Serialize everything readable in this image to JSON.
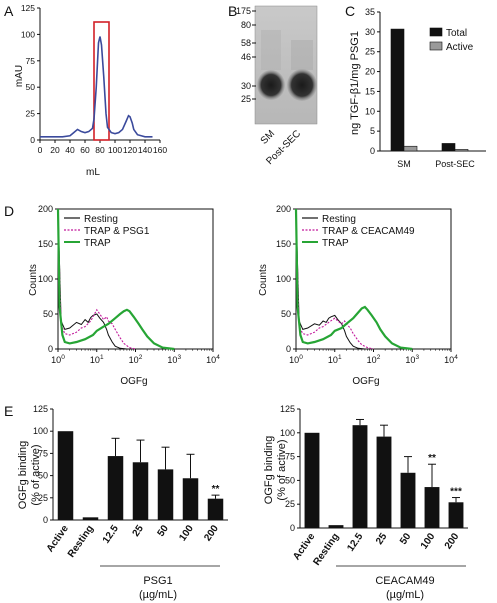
{
  "colors": {
    "blue": "#3b4a9c",
    "red": "#d22027",
    "black": "#111111",
    "grey": "#9a9a9a",
    "magenta": "#c2189b",
    "green": "#27a535"
  },
  "chart_data": [
    {
      "panel": "A",
      "type": "line",
      "xlabel": "mL",
      "ylabel": "mAU",
      "xlim": [
        0,
        160
      ],
      "ylim": [
        0,
        125
      ],
      "xticks": [
        0,
        20,
        40,
        60,
        80,
        100,
        120,
        140,
        160
      ],
      "yticks": [
        0,
        25,
        50,
        75,
        100,
        125
      ],
      "x": [
        0,
        10,
        20,
        30,
        40,
        45,
        50,
        55,
        60,
        65,
        70,
        72,
        75,
        78,
        80,
        82,
        85,
        88,
        90,
        95,
        100,
        105,
        110,
        115,
        118,
        120,
        123,
        125,
        130,
        135,
        140,
        145,
        150
      ],
      "y": [
        3,
        3,
        3,
        3,
        4,
        7,
        10,
        8,
        7,
        8,
        11,
        20,
        50,
        92,
        98,
        90,
        60,
        25,
        12,
        7,
        6,
        7,
        10,
        18,
        23,
        22,
        16,
        10,
        5,
        4,
        3,
        3,
        3
      ],
      "highlight_x": [
        72,
        92
      ]
    },
    {
      "panel": "B",
      "type": "gel",
      "marker_labels": [
        "175",
        "80",
        "58",
        "46",
        "30",
        "25"
      ],
      "marker_values": [
        175,
        80,
        58,
        46,
        30,
        25
      ],
      "lanes": [
        "SM",
        "Post-SEC"
      ]
    },
    {
      "panel": "C",
      "type": "bar",
      "ylabel": "ng TGF-β1/mg PSG1",
      "ylim": [
        0,
        35
      ],
      "yticks": [
        0,
        5,
        10,
        15,
        20,
        25,
        30,
        35
      ],
      "categories": [
        "SM",
        "Post-SEC"
      ],
      "series": [
        {
          "name": "Total",
          "values": [
            30.7,
            1.9
          ]
        },
        {
          "name": "Active",
          "values": [
            1.2,
            0.4
          ]
        }
      ],
      "legend": "top-right"
    },
    {
      "panel": "D-left",
      "type": "line",
      "xlabel": "OGFg",
      "ylabel": "Counts",
      "xscale": "log",
      "xlim": [
        1,
        10000
      ],
      "ylim": [
        0,
        200
      ],
      "yticks": [
        0,
        50,
        100,
        150,
        200
      ],
      "xtick_base": "10",
      "xtick_exps": [
        "0",
        "1",
        "2",
        "3",
        "4"
      ],
      "series": [
        {
          "name": "Resting",
          "x": [
            1,
            1.2,
            1.5,
            2,
            3,
            4,
            5,
            6,
            7,
            8,
            10,
            12,
            15,
            18,
            20,
            25,
            30,
            40,
            60
          ],
          "y": [
            200,
            40,
            28,
            30,
            38,
            35,
            42,
            38,
            45,
            48,
            50,
            44,
            38,
            28,
            20,
            10,
            4,
            1,
            0
          ]
        },
        {
          "name": "TRAP & PSG1",
          "x": [
            1,
            1.2,
            1.5,
            2,
            3,
            4,
            5,
            7,
            10,
            12,
            15,
            18,
            20,
            25,
            30,
            40,
            50,
            70,
            100
          ],
          "y": [
            195,
            35,
            22,
            20,
            24,
            30,
            32,
            40,
            56,
            50,
            42,
            46,
            40,
            36,
            28,
            16,
            8,
            2,
            0
          ]
        },
        {
          "name": "TRAP",
          "x": [
            1,
            1.1,
            1.3,
            1.5,
            2,
            3,
            5,
            8,
            10,
            15,
            20,
            30,
            40,
            50,
            60,
            70,
            90,
            120,
            150,
            200,
            300,
            500,
            1000
          ],
          "y": [
            200,
            60,
            20,
            10,
            8,
            10,
            14,
            20,
            26,
            32,
            36,
            44,
            50,
            54,
            56,
            54,
            46,
            36,
            28,
            18,
            8,
            2,
            0
          ]
        }
      ]
    },
    {
      "panel": "D-right",
      "type": "line",
      "xlabel": "OGFg",
      "ylabel": "Counts",
      "xscale": "log",
      "xlim": [
        1,
        10000
      ],
      "ylim": [
        0,
        200
      ],
      "yticks": [
        0,
        50,
        100,
        150,
        200
      ],
      "xtick_base": "10",
      "xtick_exps": [
        "0",
        "1",
        "2",
        "3",
        "4"
      ],
      "series": [
        {
          "name": "Resting",
          "x": [
            1,
            1.2,
            1.5,
            2,
            3,
            4,
            5,
            6,
            7,
            8,
            10,
            12,
            15,
            18,
            20,
            25,
            30,
            40,
            60
          ],
          "y": [
            200,
            40,
            28,
            30,
            36,
            34,
            40,
            38,
            44,
            46,
            48,
            42,
            36,
            26,
            18,
            9,
            4,
            1,
            0
          ]
        },
        {
          "name": "TRAP & CEACAM49",
          "x": [
            1,
            1.2,
            1.5,
            2,
            3,
            4,
            5,
            7,
            10,
            12,
            15,
            18,
            20,
            25,
            30,
            40,
            50,
            70,
            100
          ],
          "y": [
            195,
            32,
            22,
            20,
            24,
            30,
            32,
            38,
            44,
            40,
            36,
            40,
            36,
            30,
            22,
            12,
            6,
            2,
            0
          ]
        },
        {
          "name": "TRAP",
          "x": [
            1,
            1.1,
            1.3,
            1.5,
            2,
            3,
            5,
            8,
            10,
            15,
            20,
            30,
            40,
            50,
            60,
            70,
            90,
            120,
            150,
            200,
            300,
            500,
            1000
          ],
          "y": [
            200,
            60,
            20,
            10,
            8,
            10,
            14,
            20,
            26,
            30,
            36,
            44,
            52,
            58,
            60,
            56,
            48,
            38,
            28,
            18,
            8,
            2,
            0
          ]
        }
      ]
    },
    {
      "panel": "E-left",
      "type": "bar",
      "ylabel": "OGFg binding (% of active)",
      "ylim": [
        0,
        125
      ],
      "yticks": [
        0,
        25,
        50,
        75,
        100,
        125
      ],
      "categories": [
        "Active",
        "Resting",
        "12.5",
        "25",
        "50",
        "100",
        "200"
      ],
      "values": [
        100,
        3,
        72,
        65,
        57,
        47,
        24
      ],
      "errors": [
        0,
        0,
        20,
        25,
        25,
        27,
        4
      ],
      "significance": [
        "",
        "",
        "",
        "",
        "",
        "",
        "**"
      ],
      "group_label": "PSG1",
      "group_unit": "(µg/mL)"
    },
    {
      "panel": "E-right",
      "type": "bar",
      "ylabel": "OGFg binding (% of active)",
      "ylim": [
        0,
        125
      ],
      "yticks": [
        0,
        25,
        50,
        75,
        100,
        125
      ],
      "categories": [
        "Active",
        "Resting",
        "12.5",
        "25",
        "50",
        "100",
        "200"
      ],
      "values": [
        100,
        3,
        108,
        96,
        58,
        43,
        27
      ],
      "errors": [
        0,
        0,
        6,
        12,
        17,
        24,
        5
      ],
      "significance": [
        "",
        "",
        "",
        "",
        "",
        "**",
        "***"
      ],
      "group_label": "CEACAM49",
      "group_unit": "(µg/mL)"
    }
  ],
  "panel_letters": [
    "A",
    "B",
    "C",
    "D",
    "E"
  ]
}
